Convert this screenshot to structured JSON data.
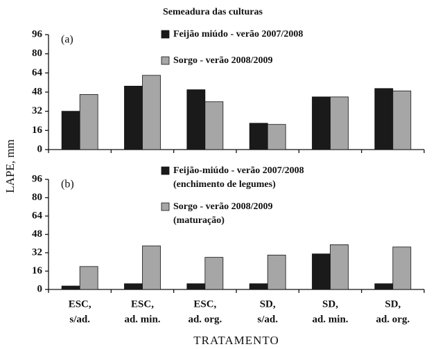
{
  "legend_title": "Semeadura das culturas",
  "ylabel": "LAPE, mm",
  "xlabel": "TRATAMENTO",
  "categories": [
    [
      "ESC,",
      "s/ad."
    ],
    [
      "ESC,",
      "ad. min."
    ],
    [
      "ESC,",
      "ad. org."
    ],
    [
      "SD,",
      "s/ad."
    ],
    [
      "SD,",
      "ad. min."
    ],
    [
      "SD,",
      "ad. org."
    ]
  ],
  "chart_data": [
    {
      "type": "bar",
      "panel_label": "(a)",
      "ylim": [
        0,
        96
      ],
      "yticks": [
        0,
        16,
        32,
        48,
        64,
        80,
        96
      ],
      "series": [
        {
          "name": [
            "Feijão miúdo - verão 2007/2008"
          ],
          "color": "#1a1a1a",
          "values": [
            32,
            53,
            50,
            22,
            44,
            51
          ]
        },
        {
          "name": [
            "Sorgo - verão 2008/2009"
          ],
          "color": "#a6a6a6",
          "values": [
            46,
            62,
            40,
            21,
            44,
            49
          ]
        }
      ]
    },
    {
      "type": "bar",
      "panel_label": "(b)",
      "ylim": [
        0,
        96
      ],
      "yticks": [
        0,
        16,
        32,
        48,
        64,
        80,
        96
      ],
      "series": [
        {
          "name": [
            "Feijão-miúdo - verão 2007/2008",
            "(enchimento de legumes)"
          ],
          "color": "#1a1a1a",
          "values": [
            3,
            5,
            5,
            5,
            31,
            5
          ]
        },
        {
          "name": [
            "Sorgo - verão 2008/2009",
            "(maturação)"
          ],
          "color": "#a6a6a6",
          "values": [
            20,
            38,
            28,
            30,
            39,
            37
          ]
        }
      ]
    }
  ]
}
